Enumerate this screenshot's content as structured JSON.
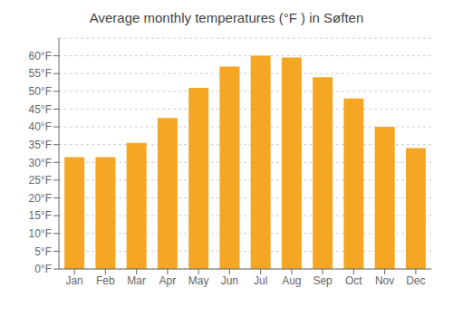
{
  "chart_data": {
    "type": "bar",
    "title": "Average monthly temperatures (°F ) in Søften",
    "categories": [
      "Jan",
      "Feb",
      "Mar",
      "Apr",
      "May",
      "Jun",
      "Jul",
      "Aug",
      "Sep",
      "Oct",
      "Nov",
      "Dec"
    ],
    "values": [
      31.5,
      31.5,
      35.5,
      42.5,
      51.0,
      57.0,
      60.0,
      59.5,
      54.0,
      48.0,
      40.0,
      34.0
    ],
    "color": "#F5A623",
    "ylim": [
      0,
      65
    ],
    "yticks": [
      {
        "value": 0,
        "label": "0°F"
      },
      {
        "value": 5,
        "label": "5°F"
      },
      {
        "value": 10,
        "label": "10°F"
      },
      {
        "value": 15,
        "label": "15°F"
      },
      {
        "value": 20,
        "label": "20°F"
      },
      {
        "value": 25,
        "label": "25°F"
      },
      {
        "value": 30,
        "label": "30°F"
      },
      {
        "value": 35,
        "label": "35°F"
      },
      {
        "value": 40,
        "label": "40°F"
      },
      {
        "value": 45,
        "label": "45°F"
      },
      {
        "value": 50,
        "label": "50°F"
      },
      {
        "value": 55,
        "label": "55°F"
      },
      {
        "value": 60,
        "label": "60°F"
      }
    ],
    "grid": true
  }
}
